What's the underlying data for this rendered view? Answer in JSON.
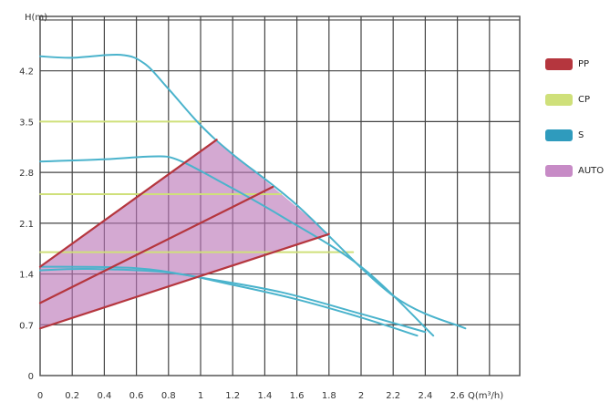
{
  "chart_data": {
    "type": "line",
    "xlabel": "Q(m³/h)",
    "ylabel": "H(m)",
    "xlim": [
      0,
      2.8
    ],
    "ylim": [
      0,
      4.9
    ],
    "x_ticks": [
      "0",
      "0.2",
      "0.4",
      "0.6",
      "0.8",
      "1",
      "1.2",
      "1.4",
      "1.6",
      "1.8",
      "2",
      "2.2",
      "2.4",
      "2.6"
    ],
    "y_ticks": [
      "0",
      "0.7",
      "1.4",
      "2.1",
      "2.8",
      "3.5",
      "4.2"
    ],
    "grid": true,
    "legend": [
      {
        "label": "PP",
        "color": "#b5363e"
      },
      {
        "label": "CP",
        "color": "#cfe07a"
      },
      {
        "label": "S",
        "color": "#2f9bbd"
      },
      {
        "label": "AUTO",
        "color": "#c78bc6"
      }
    ],
    "auto_region": [
      [
        0,
        0.65
      ],
      [
        1.8,
        1.95
      ],
      [
        1.1,
        3.25
      ],
      [
        0,
        1.5
      ]
    ],
    "series": [
      {
        "group": "S",
        "color": "#4ab3cc",
        "points": [
          [
            0,
            4.4
          ],
          [
            0.2,
            4.38
          ],
          [
            0.5,
            4.42
          ],
          [
            0.65,
            4.3
          ],
          [
            0.8,
            3.95
          ],
          [
            1.0,
            3.45
          ],
          [
            1.2,
            3.05
          ],
          [
            1.6,
            2.35
          ],
          [
            2.2,
            1.1
          ],
          [
            2.65,
            0.65
          ]
        ]
      },
      {
        "group": "S",
        "color": "#4ab3cc",
        "points": [
          [
            0,
            2.95
          ],
          [
            0.4,
            2.98
          ],
          [
            0.7,
            3.02
          ],
          [
            0.85,
            2.98
          ],
          [
            1.1,
            2.7
          ],
          [
            1.5,
            2.2
          ],
          [
            2.0,
            1.5
          ],
          [
            2.45,
            0.55
          ]
        ]
      },
      {
        "group": "S",
        "color": "#4ab3cc",
        "points": [
          [
            0,
            1.45
          ],
          [
            0.3,
            1.47
          ],
          [
            0.8,
            1.42
          ],
          [
            1.2,
            1.25
          ],
          [
            1.6,
            1.05
          ],
          [
            2.0,
            0.8
          ],
          [
            2.35,
            0.55
          ]
        ]
      },
      {
        "group": "S",
        "color": "#4ab3cc",
        "points": [
          [
            0,
            1.5
          ],
          [
            0.6,
            1.48
          ],
          [
            1.0,
            1.35
          ],
          [
            1.5,
            1.15
          ],
          [
            2.0,
            0.85
          ],
          [
            2.4,
            0.6
          ]
        ]
      },
      {
        "group": "CP",
        "color": "#cfe07a",
        "points": [
          [
            0,
            3.5
          ],
          [
            1.0,
            3.5
          ]
        ]
      },
      {
        "group": "CP",
        "color": "#cfe07a",
        "points": [
          [
            0,
            2.5
          ],
          [
            1.5,
            2.5
          ]
        ]
      },
      {
        "group": "CP",
        "color": "#cfe07a",
        "points": [
          [
            0,
            1.7
          ],
          [
            1.95,
            1.7
          ]
        ]
      },
      {
        "group": "PP",
        "color": "#b5363e",
        "points": [
          [
            0,
            1.5
          ],
          [
            1.1,
            3.25
          ]
        ]
      },
      {
        "group": "PP",
        "color": "#b5363e",
        "points": [
          [
            0,
            1.0
          ],
          [
            1.45,
            2.6
          ]
        ]
      },
      {
        "group": "PP",
        "color": "#b5363e",
        "points": [
          [
            0,
            0.65
          ],
          [
            1.8,
            1.95
          ]
        ]
      }
    ]
  }
}
